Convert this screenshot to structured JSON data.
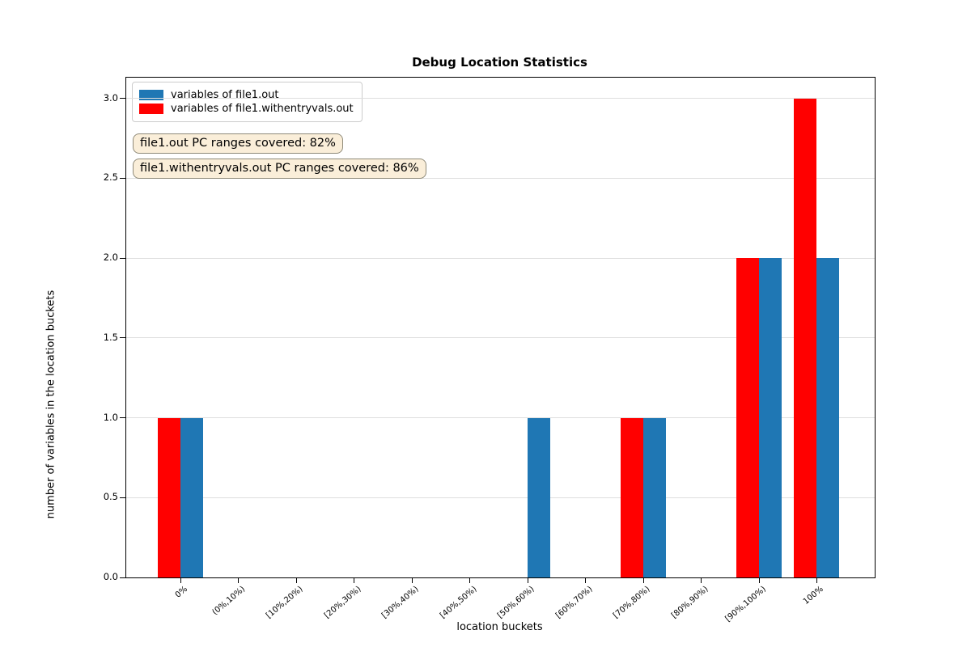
{
  "chart_data": {
    "type": "bar",
    "title": "Debug Location Statistics",
    "xlabel": "location buckets",
    "ylabel": "number of variables in the location buckets",
    "categories": [
      "0%",
      "(0%,10%)",
      "[10%,20%)",
      "[20%,30%)",
      "[30%,40%)",
      "[40%,50%)",
      "[50%,60%)",
      "[60%,70%)",
      "[70%,80%)",
      "[80%,90%)",
      "[90%,100%)",
      "100%"
    ],
    "series": [
      {
        "name": "variables of file1.out",
        "color": "#1f77b4",
        "values": [
          1,
          0,
          0,
          0,
          0,
          0,
          1,
          0,
          1,
          0,
          2,
          2
        ]
      },
      {
        "name": "variables of file1.withentryvals.out",
        "color": "#ff0000",
        "values": [
          1,
          0,
          0,
          0,
          0,
          0,
          0,
          0,
          1,
          0,
          2,
          3
        ]
      }
    ],
    "y_ticks": [
      0.0,
      0.5,
      1.0,
      1.5,
      2.0,
      2.5,
      3.0
    ],
    "ylim": [
      0,
      3.13
    ],
    "grid": "horizontal",
    "legend_position": "upper left",
    "annotations": [
      "file1.out PC ranges covered: 82%",
      "file1.withentryvals.out PC ranges covered: 86%"
    ],
    "annotation_colors": {
      "background": "#faeed9",
      "border": "#8f8a79"
    }
  }
}
